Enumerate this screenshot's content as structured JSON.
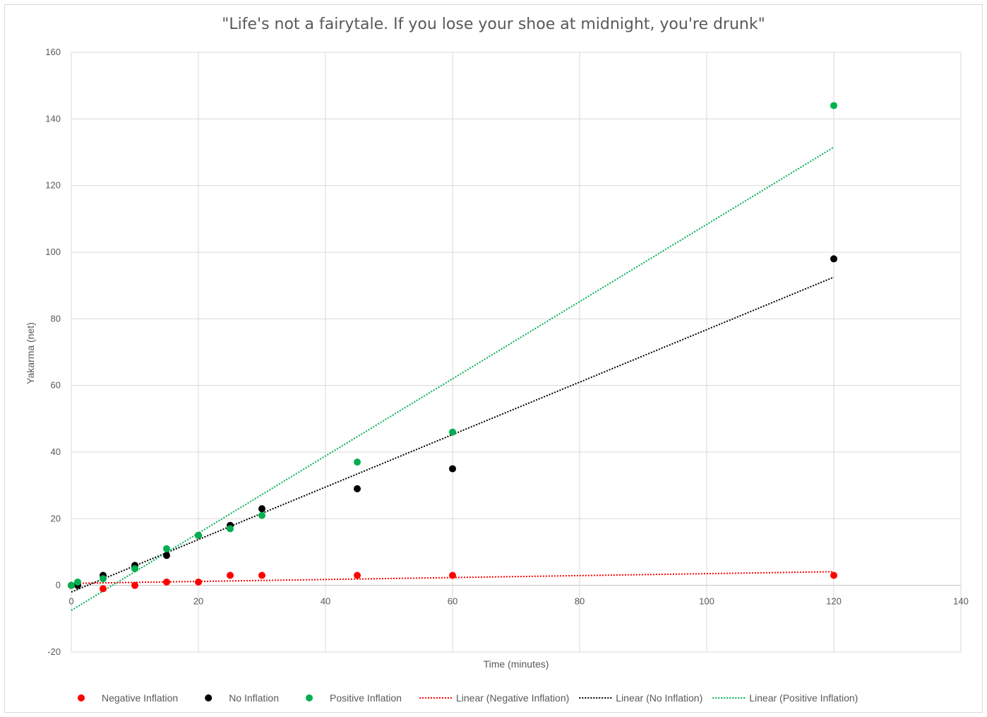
{
  "chart_data": {
    "type": "scatter",
    "title": "\"Life's not a fairytale. If you lose your shoe at midnight, you're drunk\"",
    "xlabel": "Time (minutes)",
    "ylabel": "Yakarma (net)",
    "xlim": [
      0,
      140
    ],
    "ylim": [
      -20,
      160
    ],
    "xticks": [
      0,
      20,
      40,
      60,
      80,
      100,
      120,
      140
    ],
    "yticks": [
      -20,
      0,
      20,
      40,
      60,
      80,
      100,
      120,
      140,
      160
    ],
    "grid": true,
    "legend_position": "bottom",
    "series": [
      {
        "name": "Negative Inflation",
        "color": "#ff0000",
        "points": [
          [
            0,
            0
          ],
          [
            1,
            0
          ],
          [
            5,
            -1
          ],
          [
            10,
            0
          ],
          [
            15,
            1
          ],
          [
            20,
            1
          ],
          [
            25,
            3
          ],
          [
            30,
            3
          ],
          [
            45,
            3
          ],
          [
            60,
            3
          ],
          [
            120,
            3
          ]
        ]
      },
      {
        "name": "No Inflation",
        "color": "#000000",
        "points": [
          [
            0,
            0
          ],
          [
            1,
            0
          ],
          [
            5,
            3
          ],
          [
            10,
            6
          ],
          [
            15,
            9
          ],
          [
            20,
            15
          ],
          [
            25,
            18
          ],
          [
            30,
            23
          ],
          [
            45,
            29
          ],
          [
            60,
            35
          ],
          [
            120,
            98
          ]
        ]
      },
      {
        "name": "Positive Inflation",
        "color": "#00b050",
        "points": [
          [
            0,
            0
          ],
          [
            1,
            1
          ],
          [
            5,
            2
          ],
          [
            10,
            5
          ],
          [
            15,
            11
          ],
          [
            20,
            15
          ],
          [
            25,
            17
          ],
          [
            30,
            21
          ],
          [
            45,
            37
          ],
          [
            60,
            46
          ],
          [
            120,
            144
          ]
        ]
      }
    ],
    "trendlines": [
      {
        "name": "Linear (Negative Inflation)",
        "color": "#ff0000",
        "type": "linear",
        "x_range": [
          0,
          120
        ],
        "y_range": [
          0.6,
          4.1
        ]
      },
      {
        "name": "Linear (No Inflation)",
        "color": "#000000",
        "type": "linear",
        "x_range": [
          0,
          120
        ],
        "y_range": [
          -2,
          92.5
        ]
      },
      {
        "name": "Linear (Positive Inflation)",
        "color": "#00b050",
        "type": "linear",
        "x_range": [
          0,
          120
        ],
        "y_range": [
          -7.5,
          131.5
        ]
      }
    ]
  }
}
